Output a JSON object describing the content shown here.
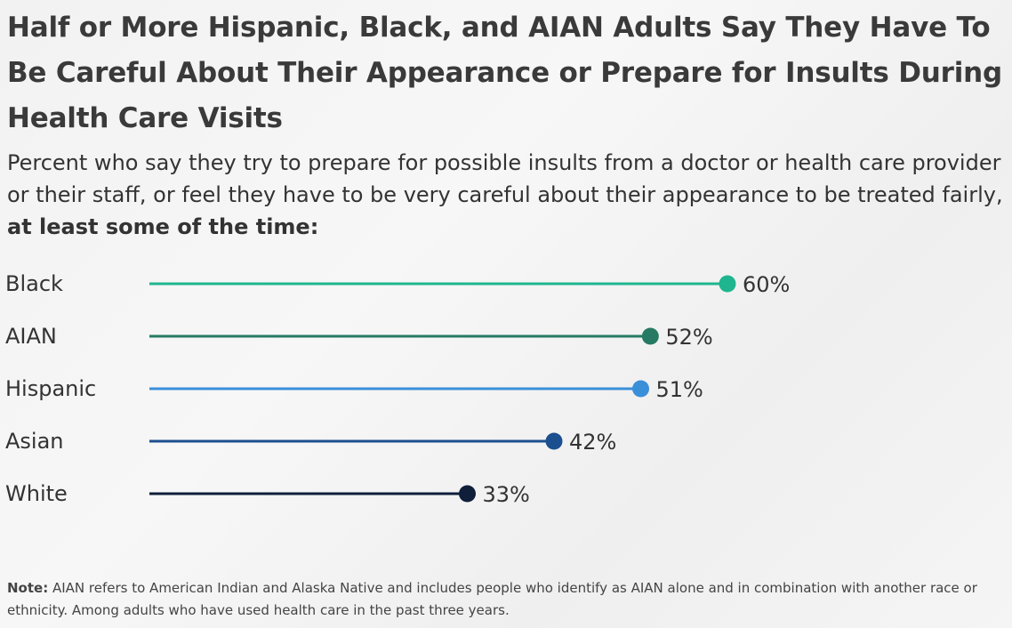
{
  "title": "Half or More Hispanic, Black, and AIAN Adults Say They Have To Be Careful About Their Appearance or Prepare for Insults During Health Care Visits",
  "subtitle_prefix": "Percent who say they try to prepare for possible insults from a doctor or health care provider or their staff, or feel they have to be very careful about their appearance to be treated fairly, ",
  "subtitle_bold": "at least some of the time:",
  "note_label": "Note:",
  "note_text": " AIAN refers to American Indian and Alaska Native and includes people who identify as AIAN alone and in combination with another race or ethnicity. Among adults who have used health care in the past three years.",
  "chart_data": {
    "type": "bar",
    "orientation": "horizontal",
    "style": "lollipop",
    "categories": [
      "Black",
      "AIAN",
      "Hispanic",
      "Asian",
      "White"
    ],
    "values": [
      60,
      52,
      51,
      42,
      33
    ],
    "data_labels": [
      "60%",
      "52%",
      "51%",
      "42%",
      "33%"
    ],
    "colors": [
      "#1fb58f",
      "#267a63",
      "#3a8fd9",
      "#1c4f8f",
      "#0f1f3a"
    ],
    "xlim": [
      0,
      100
    ],
    "grid": false
  }
}
